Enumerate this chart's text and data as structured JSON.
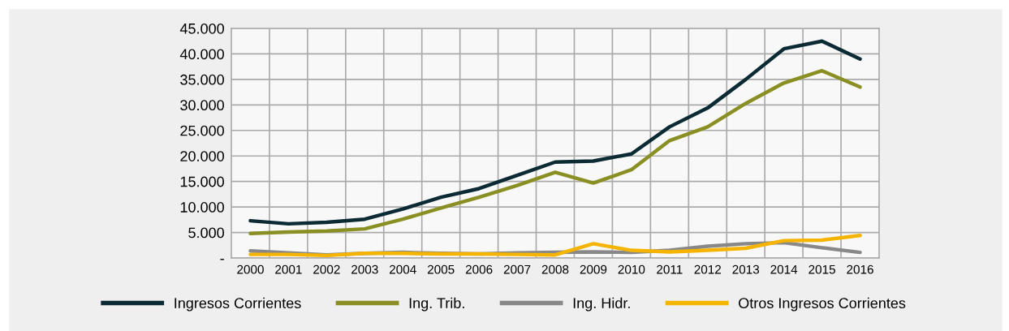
{
  "chart_data": {
    "type": "line",
    "categories": [
      "2000",
      "2001",
      "2002",
      "2003",
      "2004",
      "2005",
      "2006",
      "2007",
      "2008",
      "2009",
      "2010",
      "2011",
      "2012",
      "2013",
      "2014",
      "2015",
      "2016"
    ],
    "series": [
      {
        "name": "Ingresos Corrientes",
        "color": "#0b2a33",
        "values": [
          7300,
          6700,
          7000,
          7600,
          9600,
          11900,
          13600,
          16200,
          18800,
          19000,
          20400,
          25700,
          29400,
          35000,
          41000,
          42500,
          39000
        ]
      },
      {
        "name": "Ing. Trib.",
        "color": "#8a8f24",
        "values": [
          4800,
          5100,
          5300,
          5700,
          7600,
          9800,
          11900,
          14200,
          16800,
          14700,
          17300,
          23000,
          25700,
          30300,
          34300,
          36700,
          33500
        ]
      },
      {
        "name": "Ing. Hidr.",
        "color": "#888888",
        "values": [
          1400,
          1000,
          600,
          900,
          1100,
          900,
          800,
          1000,
          1100,
          1200,
          1100,
          1500,
          2300,
          2800,
          3000,
          2000,
          1100
        ]
      },
      {
        "name": "Otros Ingresos Corrientes",
        "color": "#f5b400",
        "values": [
          700,
          700,
          500,
          900,
          900,
          800,
          800,
          700,
          600,
          2800,
          1500,
          1200,
          1500,
          1900,
          3400,
          3500,
          4400
        ]
      }
    ],
    "ylim": [
      0,
      45000
    ],
    "yticks": [
      {
        "value": 0,
        "label": "-"
      },
      {
        "value": 5000,
        "label": "5.000"
      },
      {
        "value": 10000,
        "label": "10.000"
      },
      {
        "value": 15000,
        "label": "15.000"
      },
      {
        "value": 20000,
        "label": "20.000"
      },
      {
        "value": 25000,
        "label": "25.000"
      },
      {
        "value": 30000,
        "label": "30.000"
      },
      {
        "value": 35000,
        "label": "35.000"
      },
      {
        "value": 40000,
        "label": "40.000"
      },
      {
        "value": 45000,
        "label": "45.000"
      }
    ],
    "grid": true,
    "legend": "bottom",
    "marker": "none",
    "line_style": "solid"
  }
}
